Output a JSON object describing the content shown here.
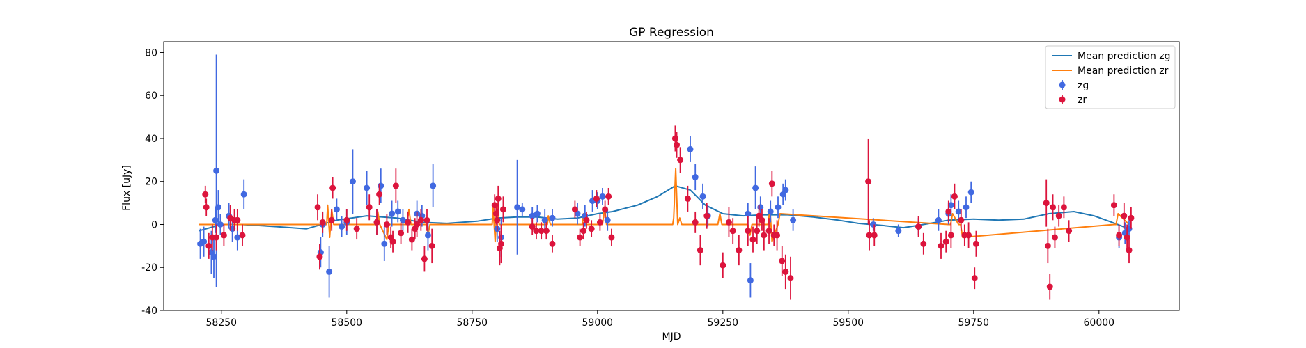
{
  "chart_data": {
    "type": "scatter",
    "title": "GP Regression",
    "xlabel": "MJD",
    "ylabel": "Flux [uJy]",
    "xlim": [
      58135,
      60160
    ],
    "ylim": [
      -40,
      85
    ],
    "x_ticks": [
      58250,
      58500,
      58750,
      59000,
      59250,
      59500,
      59750,
      60000
    ],
    "y_ticks": [
      -40,
      -20,
      0,
      20,
      40,
      60,
      80
    ],
    "grid": false,
    "legend_position": "top-right",
    "series": [
      {
        "name": "Mean prediction zg",
        "kind": "line",
        "color": "#1f77b4",
        "x": [
          58205,
          58250,
          58290,
          58360,
          58420,
          58480,
          58540,
          58600,
          58650,
          58700,
          58760,
          58800,
          58840,
          58880,
          58920,
          58960,
          59000,
          59030,
          59080,
          59120,
          59155,
          59185,
          59215,
          59250,
          59290,
          59330,
          59380,
          59430,
          59480,
          59520,
          59570,
          59610,
          59650,
          59700,
          59750,
          59800,
          59850,
          59900,
          59950,
          59990,
          60020,
          60060
        ],
        "y": [
          -3,
          0,
          0,
          -1,
          -2,
          2,
          4,
          3,
          1,
          0.5,
          1.5,
          3,
          3.5,
          3.5,
          2.5,
          3,
          5,
          6,
          9,
          13,
          18,
          16,
          9,
          5,
          4,
          4.5,
          4.5,
          3.5,
          2,
          0.5,
          -0.5,
          -1.5,
          0,
          2,
          2.5,
          2,
          2.5,
          5,
          6,
          4,
          1.5,
          -2
        ]
      },
      {
        "name": "Mean prediction zr",
        "kind": "line",
        "color": "#ff7f0e",
        "x": [
          58205,
          58460,
          58462,
          58466,
          58470,
          58474,
          58560,
          58562,
          58566,
          58580,
          58584,
          58620,
          58624,
          58628,
          58660,
          58662,
          58666,
          58790,
          58792,
          58796,
          58800,
          58804,
          58900,
          58902,
          58906,
          58970,
          58972,
          58976,
          59010,
          59014,
          59018,
          59150,
          59152,
          59156,
          59160,
          59164,
          59168,
          59240,
          59244,
          59248,
          59300,
          59304,
          59308,
          59340,
          59344,
          59348,
          59360,
          59364,
          59700,
          59704,
          59708,
          59720,
          59724,
          59728,
          60030,
          60034,
          60038,
          60060
        ],
        "y": [
          0,
          0,
          9,
          -6,
          7,
          0,
          0,
          6,
          0,
          -7,
          0,
          0,
          7,
          0,
          0,
          -5,
          0,
          0,
          8,
          -8,
          10,
          0,
          0,
          4,
          0,
          0,
          5,
          0,
          0,
          8,
          0,
          0,
          3,
          26,
          0,
          3,
          0,
          0,
          5,
          0,
          0,
          -5,
          0,
          0,
          7,
          -8,
          0,
          5,
          0,
          0,
          5,
          0,
          0,
          -6,
          0,
          0,
          5,
          0
        ]
      },
      {
        "name": "zg",
        "kind": "errorbar",
        "color": "#4169e1",
        "x": [
          58208,
          58215,
          58230,
          58235,
          58238,
          58240,
          58244,
          58248,
          58265,
          58272,
          58282,
          58295,
          58448,
          58452,
          58465,
          58480,
          58490,
          58500,
          58512,
          58540,
          58560,
          58568,
          58575,
          58590,
          58602,
          58612,
          58640,
          58650,
          58662,
          58672,
          58800,
          58808,
          58840,
          58850,
          58870,
          58880,
          58895,
          58910,
          58960,
          58975,
          58990,
          59000,
          59010,
          59020,
          59185,
          59195,
          59210,
          59220,
          59300,
          59305,
          59315,
          59325,
          59345,
          59360,
          59370,
          59375,
          59390,
          59550,
          59600,
          59640,
          59680,
          59700,
          59705,
          59720,
          59735,
          59745,
          60040,
          60052,
          60060
        ],
        "y": [
          -9,
          -8,
          -13,
          -15,
          2,
          25,
          8,
          0,
          4,
          -2,
          -6,
          14,
          -13,
          0,
          -22,
          7,
          -1,
          1,
          20,
          17,
          1,
          18,
          -9,
          5,
          6,
          2,
          5,
          4,
          -5,
          18,
          -2,
          -6,
          8,
          7,
          4,
          5,
          2,
          3,
          5,
          4,
          11,
          11,
          13,
          2,
          35,
          22,
          13,
          4,
          5,
          -26,
          17,
          8,
          6,
          8,
          14,
          16,
          2,
          0,
          -3,
          -1,
          2,
          5,
          9,
          6,
          8,
          15,
          -6,
          -4,
          -2
        ],
        "err": [
          7,
          7,
          10,
          10,
          6,
          54,
          8,
          5,
          6,
          6,
          6,
          7,
          7,
          6,
          12,
          5,
          5,
          6,
          15,
          8,
          6,
          8,
          8,
          6,
          5,
          5,
          6,
          5,
          7,
          10,
          6,
          9,
          22,
          3,
          4,
          4,
          5,
          4,
          5,
          5,
          5,
          4,
          4,
          5,
          6,
          6,
          6,
          5,
          5,
          8,
          10,
          5,
          5,
          5,
          5,
          5,
          5,
          3,
          3,
          4,
          5,
          5,
          5,
          5,
          5,
          5,
          5,
          5,
          4
        ]
      },
      {
        "name": "zr",
        "kind": "errorbar",
        "color": "#dc143c",
        "x": [
          58218,
          58220,
          58225,
          58232,
          58240,
          58255,
          58268,
          58276,
          58282,
          58292,
          58442,
          58446,
          58452,
          58470,
          58472,
          58500,
          58520,
          58545,
          58560,
          58565,
          58580,
          58588,
          58592,
          58598,
          58608,
          58622,
          58630,
          58636,
          58640,
          58648,
          58655,
          58660,
          58670,
          58795,
          58798,
          58800,
          58802,
          58805,
          58808,
          58812,
          58870,
          58878,
          58888,
          58898,
          58910,
          58955,
          58965,
          58972,
          58978,
          58988,
          58998,
          59005,
          59015,
          59022,
          59028,
          59155,
          59158,
          59165,
          59180,
          59195,
          59205,
          59218,
          59250,
          59262,
          59270,
          59282,
          59300,
          59310,
          59318,
          59322,
          59328,
          59332,
          59342,
          59348,
          59352,
          59358,
          59368,
          59375,
          59385,
          59540,
          59542,
          59552,
          59640,
          59650,
          59685,
          59695,
          59700,
          59705,
          59712,
          59725,
          59732,
          59740,
          59752,
          59755,
          59895,
          59898,
          59902,
          59908,
          59912,
          59920,
          59930,
          59940,
          60030,
          60040,
          60050,
          60056,
          60060,
          60064
        ],
        "y": [
          14,
          8,
          -10,
          -6,
          -6,
          -5,
          3,
          2,
          2,
          -5,
          8,
          -15,
          1,
          2,
          17,
          2,
          -2,
          8,
          1,
          14,
          0,
          -6,
          -8,
          18,
          -4,
          1,
          -7,
          -2,
          0,
          2,
          -16,
          2,
          -10,
          9,
          5,
          2,
          12,
          -11,
          -9,
          7,
          -1,
          -3,
          -3,
          -3,
          -9,
          7,
          -6,
          -3,
          2,
          -2,
          12,
          1,
          7,
          13,
          -6,
          40,
          37,
          30,
          12,
          1,
          -12,
          4,
          -19,
          1,
          -3,
          -12,
          -3,
          -7,
          -3,
          4,
          2,
          -5,
          -3,
          19,
          -5,
          -5,
          -17,
          -22,
          -25,
          20,
          -5,
          -5,
          -1,
          -9,
          -10,
          -8,
          6,
          -5,
          13,
          2,
          -5,
          -5,
          -25,
          -9,
          10,
          -10,
          -29,
          8,
          -6,
          4,
          8,
          -3,
          9,
          -5,
          4,
          -6,
          -12,
          3
        ],
        "err": [
          4,
          4,
          6,
          6,
          6,
          5,
          6,
          5,
          5,
          5,
          6,
          6,
          5,
          5,
          5,
          5,
          5,
          6,
          6,
          5,
          5,
          5,
          5,
          8,
          5,
          5,
          5,
          5,
          6,
          5,
          6,
          5,
          8,
          5,
          5,
          5,
          6,
          8,
          9,
          6,
          4,
          4,
          4,
          4,
          4,
          4,
          4,
          4,
          4,
          4,
          4,
          4,
          4,
          4,
          4,
          6,
          6,
          6,
          6,
          5,
          7,
          6,
          6,
          7,
          6,
          7,
          7,
          6,
          6,
          5,
          5,
          7,
          6,
          6,
          5,
          7,
          7,
          8,
          10,
          20,
          7,
          5,
          5,
          5,
          6,
          5,
          5,
          6,
          6,
          5,
          5,
          6,
          5,
          6,
          11,
          8,
          6,
          6,
          5,
          5,
          5,
          5,
          5,
          5,
          6,
          6,
          6,
          5
        ]
      }
    ]
  }
}
